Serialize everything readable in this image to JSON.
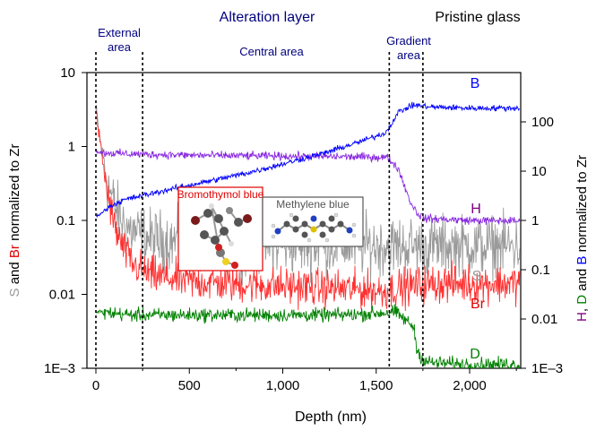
{
  "chart_data": {
    "type": "line",
    "xlabel": "Depth (nm)",
    "xlim": [
      -50,
      2270
    ],
    "x_ticks": [
      0,
      500,
      1000,
      1500,
      2000
    ],
    "x_tick_labels": [
      "0",
      "500",
      "1,000",
      "1,500",
      "2,000"
    ],
    "left_axis": {
      "label_parts": [
        {
          "text": "S",
          "color": "#9a9a9a"
        },
        {
          "text": " and ",
          "color": "#000000"
        },
        {
          "text": "Br",
          "color": "#e00000"
        },
        {
          "text": " normalized to Zr",
          "color": "#000000"
        }
      ],
      "scale": "log",
      "ylim": [
        0.001,
        10
      ],
      "ticks": [
        0.001,
        0.01,
        0.1,
        1,
        10
      ],
      "tick_labels": [
        "1E–3",
        "0.01",
        "0.1",
        "1",
        "10"
      ]
    },
    "right_axis": {
      "label_parts": [
        {
          "text": "H",
          "color": "#800080"
        },
        {
          "text": ", ",
          "color": "#000000"
        },
        {
          "text": "D",
          "color": "#008000"
        },
        {
          "text": " and ",
          "color": "#000000"
        },
        {
          "text": "B",
          "color": "#0000ff"
        },
        {
          "text": " normalized to Zr",
          "color": "#000000"
        }
      ],
      "scale": "log",
      "ylim": [
        0.001,
        1000
      ],
      "ticks": [
        0.001,
        0.01,
        0.1,
        1,
        10,
        100
      ],
      "tick_labels": [
        "1E–3",
        "0.01",
        "0.1",
        "1",
        "10",
        "100"
      ]
    },
    "regions": {
      "top_labels": [
        {
          "text": "Alteration layer",
          "color": "#000080",
          "x": 600
        },
        {
          "text": "Pristine glass",
          "color": "#000000",
          "x": 2010
        }
      ],
      "sub_labels": [
        {
          "lines": [
            "External",
            "area"
          ],
          "x": 125
        },
        {
          "lines": [
            "Central area"
          ],
          "x": 900
        },
        {
          "lines": [
            "Gradient",
            "area"
          ],
          "x": 1670
        }
      ],
      "boundaries": [
        0,
        250,
        1570,
        1750
      ]
    },
    "series": [
      {
        "name": "B",
        "axis": "right",
        "color": "#0000ff",
        "noise": 0.05,
        "x": [
          0,
          40,
          80,
          150,
          250,
          400,
          600,
          800,
          1000,
          1200,
          1400,
          1550,
          1580,
          1620,
          1700,
          1800,
          2000,
          2250
        ],
        "y": [
          1.2,
          1.5,
          2.0,
          2.6,
          3.2,
          4.3,
          6.2,
          9.0,
          14,
          22,
          38,
          60,
          90,
          160,
          220,
          200,
          190,
          190
        ]
      },
      {
        "name": "H",
        "axis": "right",
        "color": "#8a2be2",
        "noise": 0.07,
        "x": [
          0,
          30,
          100,
          250,
          500,
          800,
          1100,
          1400,
          1560,
          1620,
          1680,
          1720,
          1760,
          2000,
          2250
        ],
        "y": [
          25,
          24,
          23,
          22,
          21,
          20.5,
          20,
          19.5,
          19,
          11,
          2.5,
          1.4,
          1.1,
          1.0,
          0.98
        ]
      },
      {
        "name": "S",
        "axis": "left",
        "color": "#9a9a9a",
        "noise": 0.35,
        "x": [
          0,
          10,
          30,
          60,
          100,
          150,
          200,
          300,
          500,
          700,
          1000,
          1300,
          1600,
          1800,
          2000,
          2250
        ],
        "y": [
          3.0,
          2.0,
          0.9,
          0.35,
          0.15,
          0.09,
          0.07,
          0.055,
          0.05,
          0.05,
          0.048,
          0.047,
          0.045,
          0.045,
          0.045,
          0.045
        ]
      },
      {
        "name": "Br",
        "axis": "left",
        "color": "#ff3030",
        "noise": 0.22,
        "x": [
          0,
          10,
          30,
          60,
          100,
          150,
          200,
          300,
          500,
          700,
          1000,
          1300,
          1550,
          1600,
          1700,
          1800,
          2000,
          2250
        ],
        "y": [
          3.0,
          2.0,
          0.8,
          0.25,
          0.08,
          0.04,
          0.025,
          0.018,
          0.015,
          0.014,
          0.013,
          0.012,
          0.011,
          0.012,
          0.013,
          0.014,
          0.014,
          0.014
        ]
      },
      {
        "name": "D",
        "axis": "right",
        "color": "#008000",
        "noise": 0.12,
        "x": [
          0,
          200,
          500,
          900,
          1300,
          1500,
          1600,
          1700,
          1720,
          1760,
          1800,
          2000,
          2250
        ],
        "y": [
          0.014,
          0.012,
          0.012,
          0.012,
          0.012,
          0.013,
          0.014,
          0.007,
          0.0022,
          0.0014,
          0.0013,
          0.0012,
          0.0012
        ]
      }
    ],
    "series_labels": [
      {
        "name": "B",
        "color": "#0000ff"
      },
      {
        "name": "H",
        "color": "#800080"
      },
      {
        "name": "S",
        "color": "#9a9a9a"
      },
      {
        "name": "Br",
        "color": "#e00000"
      },
      {
        "name": "D",
        "color": "#008000"
      }
    ],
    "insets": [
      {
        "caption": "Bromothymol blue",
        "color": "#e00000"
      },
      {
        "caption": "Methylene blue",
        "color": "#555555"
      }
    ]
  }
}
